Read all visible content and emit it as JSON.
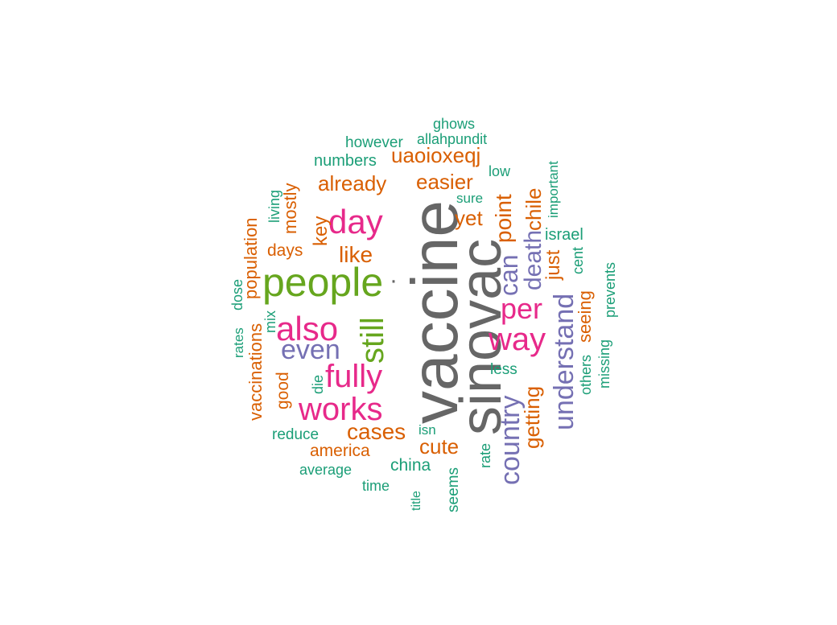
{
  "colors": {
    "gray": "#666666",
    "green": "#66a61e",
    "pink": "#e7298a",
    "purple": "#7570b3",
    "orange": "#d95f02",
    "teal": "#1b9e77"
  },
  "words": {
    "vaccine": "vaccine",
    "sinovac": "sinovac",
    "people": "people",
    "dot": "·",
    "day": "day",
    "also": "also",
    "still": "still",
    "fully": "fully",
    "works": "works",
    "even": "even",
    "way": "way",
    "per": "per",
    "can": "can",
    "death": "death",
    "understand": "understand",
    "country": "country",
    "like": "like",
    "cases": "cases",
    "cute": "cute",
    "easier": "easier",
    "uaoioxeqj": "uaoioxeqj",
    "already": "already",
    "yet": "yet",
    "point": "point",
    "chile": "chile",
    "just": "just",
    "getting": "getting",
    "seeing": "seeing",
    "key": "key",
    "mostly": "mostly",
    "days": "days",
    "population": "population",
    "vaccinations": "vaccinations",
    "good": "good",
    "america": "america",
    "numbers": "numbers",
    "however": "however",
    "ghows": "ghows",
    "allahpundit": "allahpundit",
    "low": "low",
    "sure": "sure",
    "important": "important",
    "israel": "israel",
    "cent": "cent",
    "prevents": "prevents",
    "missing": "missing",
    "others": "others",
    "less": "less",
    "living": "living",
    "dose": "dose",
    "rates": "rates",
    "mix": "mix",
    "die": "die",
    "reduce": "reduce",
    "average": "average",
    "time": "time",
    "title": "title",
    "seems": "seems",
    "china": "china",
    "isn": "isn",
    "rate": "rate"
  }
}
